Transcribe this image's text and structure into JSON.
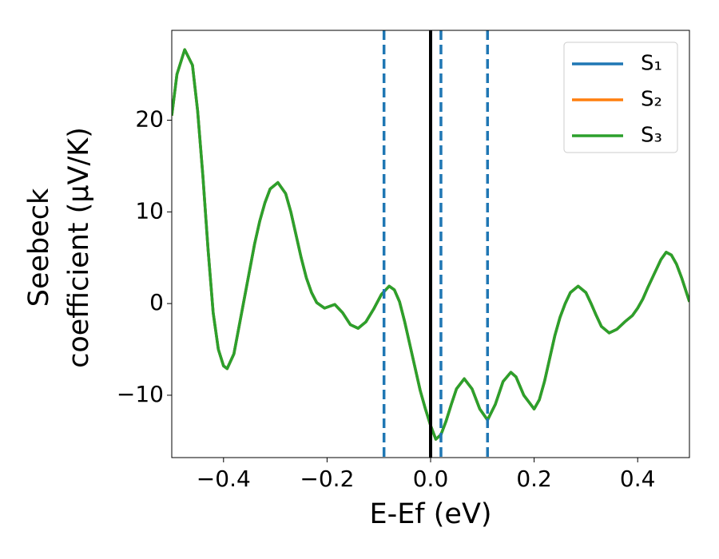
{
  "chart_data": {
    "type": "line",
    "xlabel": "E-Ef (eV)",
    "ylabel": [
      "Seebeck",
      "coefficient  (μV/K)"
    ],
    "x": [
      -0.5,
      -0.49,
      -0.475,
      -0.46,
      -0.45,
      -0.44,
      -0.43,
      -0.42,
      -0.41,
      -0.4,
      -0.393,
      -0.38,
      -0.37,
      -0.36,
      -0.35,
      -0.34,
      -0.33,
      -0.32,
      -0.31,
      -0.295,
      -0.28,
      -0.27,
      -0.26,
      -0.25,
      -0.24,
      -0.23,
      -0.22,
      -0.205,
      -0.185,
      -0.17,
      -0.155,
      -0.14,
      -0.125,
      -0.11,
      -0.095,
      -0.08,
      -0.07,
      -0.06,
      -0.05,
      -0.04,
      -0.03,
      -0.02,
      -0.01,
      0,
      0.01,
      0.02,
      0.03,
      0.04,
      0.05,
      0.065,
      0.08,
      0.095,
      0.11,
      0.125,
      0.14,
      0.155,
      0.165,
      0.18,
      0.2,
      0.21,
      0.22,
      0.23,
      0.24,
      0.25,
      0.26,
      0.27,
      0.285,
      0.3,
      0.31,
      0.32,
      0.33,
      0.345,
      0.36,
      0.375,
      0.39,
      0.4,
      0.41,
      0.42,
      0.43,
      0.445,
      0.455,
      0.465,
      0.475,
      0.485,
      0.5
    ],
    "series": [
      {
        "name": "S₁",
        "color": "#1f77b4",
        "values": [
          20.5,
          25,
          27.7,
          26,
          21,
          14,
          6,
          -1,
          -5,
          -6.8,
          -7.1,
          -5.5,
          -2.5,
          0.5,
          3.5,
          6.5,
          9,
          11,
          12.5,
          13.2,
          12,
          10,
          7.5,
          5,
          2.8,
          1.2,
          0.1,
          -0.5,
          -0.1,
          -1,
          -2.3,
          -2.7,
          -2,
          -0.6,
          1,
          1.9,
          1.5,
          0.2,
          -2,
          -4.5,
          -7,
          -9.5,
          -11.5,
          -13.3,
          -14.8,
          -14.3,
          -12.8,
          -11,
          -9.3,
          -8.2,
          -9.3,
          -11.5,
          -12.7,
          -11,
          -8.5,
          -7.5,
          -8,
          -10,
          -11.5,
          -10.5,
          -8.5,
          -6,
          -3.5,
          -1.5,
          0,
          1.2,
          1.9,
          1.2,
          0,
          -1.3,
          -2.5,
          -3.2,
          -2.8,
          -2,
          -1.3,
          -0.5,
          0.5,
          1.8,
          3,
          4.8,
          5.6,
          5.3,
          4.3,
          2.8,
          0.2
        ]
      },
      {
        "name": "S₂",
        "color": "#ff7f0e",
        "values": [
          20.5,
          25,
          27.7,
          26,
          21,
          14,
          6,
          -1,
          -5,
          -6.8,
          -7.1,
          -5.5,
          -2.5,
          0.5,
          3.5,
          6.5,
          9,
          11,
          12.5,
          13.2,
          12,
          10,
          7.5,
          5,
          2.8,
          1.2,
          0.1,
          -0.5,
          -0.1,
          -1,
          -2.3,
          -2.7,
          -2,
          -0.6,
          1,
          1.9,
          1.5,
          0.2,
          -2,
          -4.5,
          -7,
          -9.5,
          -11.5,
          -13.3,
          -14.8,
          -14.3,
          -12.8,
          -11,
          -9.3,
          -8.2,
          -9.3,
          -11.5,
          -12.7,
          -11,
          -8.5,
          -7.5,
          -8,
          -10,
          -11.5,
          -10.5,
          -8.5,
          -6,
          -3.5,
          -1.5,
          0,
          1.2,
          1.9,
          1.2,
          0,
          -1.3,
          -2.5,
          -3.2,
          -2.8,
          -2,
          -1.3,
          -0.5,
          0.5,
          1.8,
          3,
          4.8,
          5.6,
          5.3,
          4.3,
          2.8,
          0.2
        ]
      },
      {
        "name": "S₃",
        "color": "#2ca02c",
        "values": [
          20.5,
          25,
          27.7,
          26,
          21,
          14,
          6,
          -1,
          -5,
          -6.8,
          -7.1,
          -5.5,
          -2.5,
          0.5,
          3.5,
          6.5,
          9,
          11,
          12.5,
          13.2,
          12,
          10,
          7.5,
          5,
          2.8,
          1.2,
          0.1,
          -0.5,
          -0.1,
          -1,
          -2.3,
          -2.7,
          -2,
          -0.6,
          1,
          1.9,
          1.5,
          0.2,
          -2,
          -4.5,
          -7,
          -9.5,
          -11.5,
          -13.3,
          -14.8,
          -14.3,
          -12.8,
          -11,
          -9.3,
          -8.2,
          -9.3,
          -11.5,
          -12.7,
          -11,
          -8.5,
          -7.5,
          -8,
          -10,
          -11.5,
          -10.5,
          -8.5,
          -6,
          -3.5,
          -1.5,
          0,
          1.2,
          1.9,
          1.2,
          0,
          -1.3,
          -2.5,
          -3.2,
          -2.8,
          -2,
          -1.3,
          -0.5,
          0.5,
          1.8,
          3,
          4.8,
          5.6,
          5.3,
          4.3,
          2.8,
          0.2
        ]
      }
    ],
    "vlines": [
      {
        "x": 0,
        "color": "#000000",
        "dashed": false
      },
      {
        "x": -0.09,
        "color": "#1f77b4",
        "dashed": true
      },
      {
        "x": 0.02,
        "color": "#1f77b4",
        "dashed": true
      },
      {
        "x": 0.11,
        "color": "#1f77b4",
        "dashed": true
      }
    ],
    "xlim": [
      -0.5,
      0.5
    ],
    "ylim": [
      -16.8,
      29.8
    ],
    "xticks": [
      {
        "value": -0.4,
        "label": "−0.4"
      },
      {
        "value": -0.2,
        "label": "−0.2"
      },
      {
        "value": 0,
        "label": "0.0"
      },
      0.2,
      0.4
    ],
    "yticks": [
      {
        "value": -10,
        "label": "−10"
      },
      0,
      10,
      20
    ],
    "grid": false,
    "legend": "upper right"
  }
}
